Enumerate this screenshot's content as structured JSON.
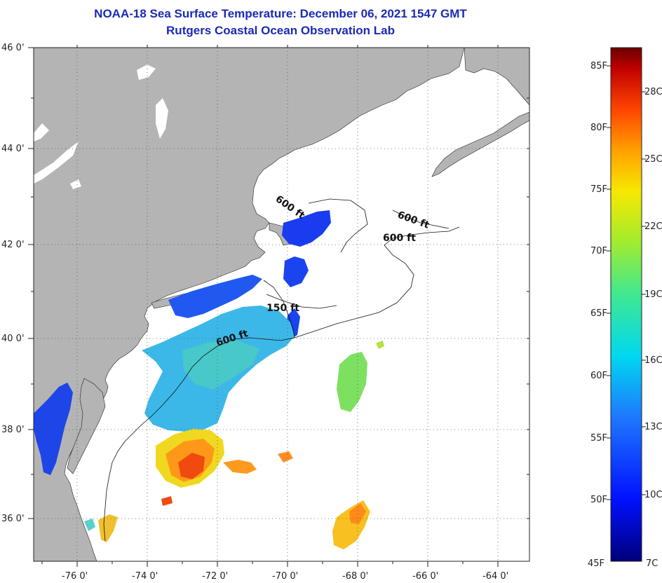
{
  "title": {
    "line1": "NOAA-18 Sea Surface Temperature:  December 06, 2021 1547 GMT",
    "line2": "Rutgers Coastal Ocean Observation Lab"
  },
  "axes": {
    "lat_labels": [
      "46 0'",
      "44 0'",
      "42 0'",
      "40 0'",
      "38 0'",
      "36 0'"
    ],
    "lon_labels": [
      "-76 0'",
      "-74 0'",
      "-72 0'",
      "-70 0'",
      "-68 0'",
      "-66 0'",
      "-64 0'"
    ]
  },
  "depth_contours": [
    "600 ft",
    "600 ft",
    "600 ft",
    "150 ft",
    "600 ft"
  ],
  "legend": {
    "fahrenheit": [
      "85F",
      "80F",
      "75F",
      "70F",
      "65F",
      "60F",
      "55F",
      "50F",
      "45F"
    ],
    "celsius": [
      "28C",
      "25C",
      "22C",
      "19C",
      "16C",
      "13C",
      "10C",
      "7C"
    ]
  },
  "colors": {
    "land": "#b4b4b4",
    "ocean": "#ffffff",
    "title": "#1a2ab4",
    "grid": "#555555"
  }
}
